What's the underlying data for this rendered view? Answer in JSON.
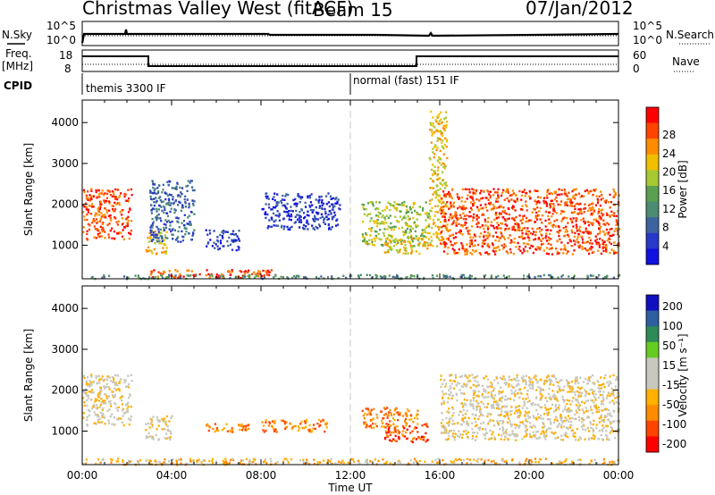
{
  "header": {
    "title": "Christmas Valley West (fitACF)",
    "beam": "Beam 15",
    "date": "07/Jan/2012"
  },
  "summary": {
    "nsky_label": "N.Sky",
    "nsearch_label": "N.Search",
    "noise_ticks": [
      "10^5",
      "10^0"
    ],
    "freq_label": "Freq.",
    "freq_unit": "[MHz]",
    "freq_ticks": [
      "18",
      "8"
    ],
    "nave_label": "Nave",
    "nave_ticks": [
      "60",
      "0"
    ],
    "cpid_label": "CPID",
    "cpid_modes": [
      "themis 3300 IF",
      "normal (fast) 151 IF"
    ]
  },
  "colors": {
    "power_scale": [
      "#1010e0",
      "#2838c8",
      "#3c64a0",
      "#4c8c70",
      "#5aa050",
      "#a8c832",
      "#f0c000",
      "#ff8c00",
      "#ff4400",
      "#ff0000"
    ],
    "velocity_scale": [
      "#ff0000",
      "#ff4400",
      "#ff8c00",
      "#ffb000",
      "#c8c8be",
      "#c8c8be",
      "#66cc22",
      "#2e8b57",
      "#2e5fa0",
      "#1010c0"
    ],
    "ground_scatter": "#c8c8be"
  },
  "chart_data": [
    {
      "type": "heatmap",
      "name": "power",
      "ylabel": "Slant Range [km]",
      "yticks": [
        "1000",
        "2000",
        "3000",
        "4000"
      ],
      "ylim": [
        180,
        4550
      ],
      "colorbar_label": "Power [dB]",
      "colorbar_ticks": [
        "4",
        "8",
        "12",
        "16",
        "20",
        "24",
        "28"
      ],
      "regions": [
        {
          "t0": 0.0,
          "t1": 2.2,
          "r0": 1150,
          "r1": 2400,
          "level": 8
        },
        {
          "t0": 2.8,
          "t1": 3.8,
          "r0": 800,
          "r1": 1400,
          "level": 6
        },
        {
          "t0": 3.0,
          "t1": 8.5,
          "r0": 220,
          "r1": 420,
          "level": 8
        },
        {
          "t0": 3.0,
          "t1": 5.0,
          "r0": 1100,
          "r1": 2600,
          "level": 2
        },
        {
          "t0": 5.5,
          "t1": 7.0,
          "r0": 900,
          "r1": 1400,
          "level": 1
        },
        {
          "t0": 8.0,
          "t1": 11.5,
          "r0": 1400,
          "r1": 2300,
          "level": 1
        },
        {
          "t0": 12.5,
          "t1": 15.5,
          "r0": 1000,
          "r1": 2100,
          "level": 5
        },
        {
          "t0": 13.5,
          "t1": 15.5,
          "r0": 800,
          "r1": 1200,
          "level": 6
        },
        {
          "t0": 15.5,
          "t1": 16.3,
          "r0": 1000,
          "r1": 4300,
          "level": 6
        },
        {
          "t0": 16.0,
          "t1": 24.0,
          "r0": 800,
          "r1": 2400,
          "level": 8
        },
        {
          "t0": 0.0,
          "t1": 24.0,
          "r0": 200,
          "r1": 300,
          "level": 3
        }
      ]
    },
    {
      "type": "heatmap",
      "name": "velocity",
      "ylabel": "Slant Range [km]",
      "yticks": [
        "1000",
        "2000",
        "3000",
        "4000"
      ],
      "ylim": [
        180,
        4550
      ],
      "colorbar_label": "Velocity [m s⁻¹]",
      "colorbar_ticks": [
        "200",
        "100",
        "50",
        "15",
        "-15",
        "-50",
        "-100",
        "-200"
      ],
      "xlabel": "Time UT",
      "xticks": [
        "00:00",
        "04:00",
        "08:00",
        "12:00",
        "16:00",
        "20:00",
        "00:00"
      ],
      "regions": [
        {
          "t0": 0.0,
          "t1": 2.2,
          "r0": 1150,
          "r1": 2400,
          "level": 4
        },
        {
          "t0": 2.8,
          "t1": 4.0,
          "r0": 800,
          "r1": 1400,
          "level": 4
        },
        {
          "t0": 5.5,
          "t1": 7.5,
          "r0": 1000,
          "r1": 1200,
          "level": 2
        },
        {
          "t0": 8.0,
          "t1": 11.0,
          "r0": 1000,
          "r1": 1300,
          "level": 2
        },
        {
          "t0": 12.5,
          "t1": 15.0,
          "r0": 1100,
          "r1": 1600,
          "level": 2
        },
        {
          "t0": 13.5,
          "t1": 15.5,
          "r0": 750,
          "r1": 1200,
          "level": 1
        },
        {
          "t0": 16.0,
          "t1": 24.0,
          "r0": 800,
          "r1": 2400,
          "level": 4
        },
        {
          "t0": 0.0,
          "t1": 24.0,
          "r0": 200,
          "r1": 350,
          "level": 3
        }
      ]
    }
  ]
}
